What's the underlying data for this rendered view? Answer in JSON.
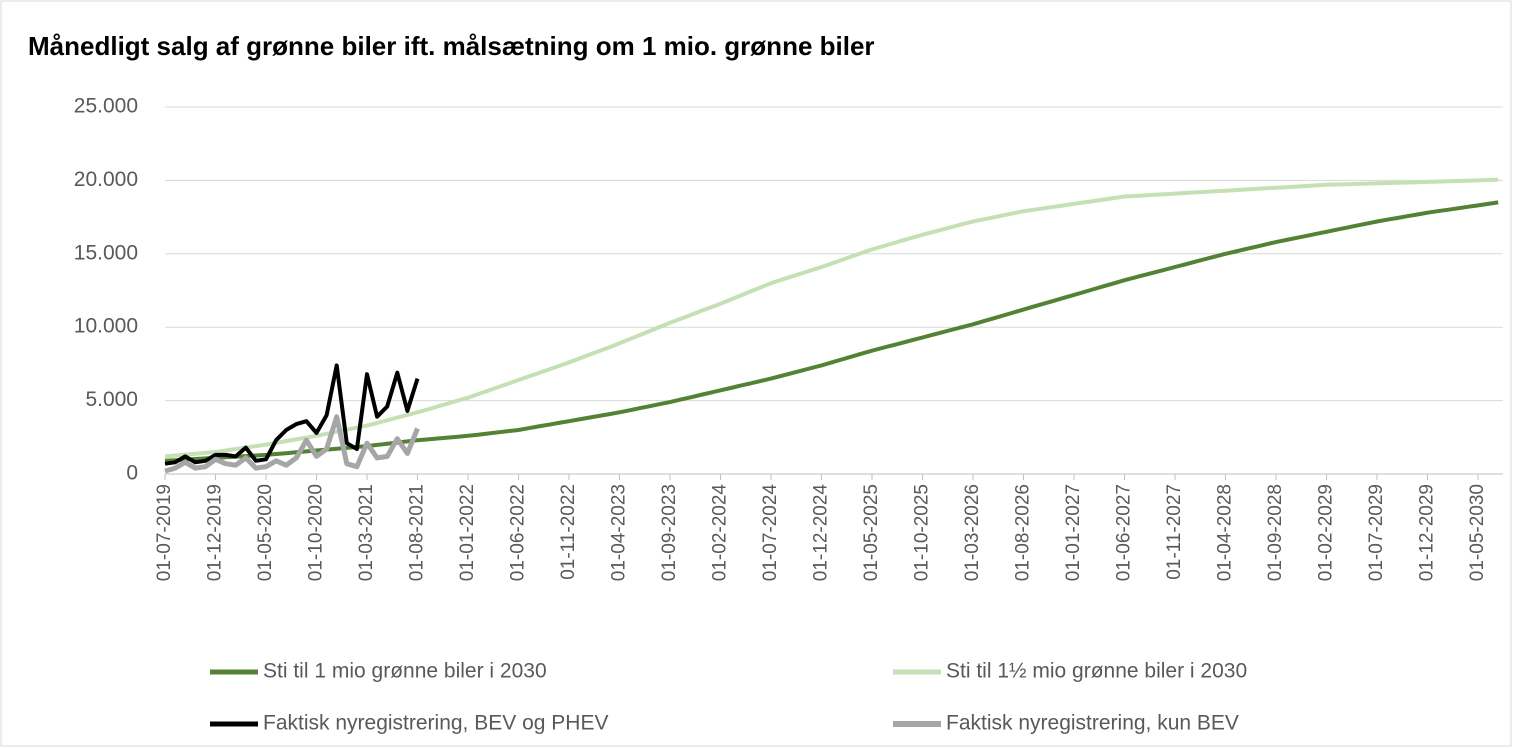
{
  "chart_data": {
    "type": "line",
    "title": "Månedligt salg af grønne biler ift. målsætning om 1 mio. grønne biler",
    "categories": [
      "01-07-2019",
      null,
      null,
      null,
      null,
      "01-12-2019",
      null,
      null,
      null,
      null,
      "01-05-2020",
      null,
      null,
      null,
      null,
      "01-10-2020",
      null,
      null,
      null,
      null,
      "01-03-2021",
      null,
      null,
      null,
      null,
      "01-08-2021",
      null,
      null,
      null,
      null,
      "01-01-2022",
      null,
      null,
      null,
      null,
      "01-06-2022",
      null,
      null,
      null,
      null,
      "01-11-2022",
      null,
      null,
      null,
      null,
      "01-04-2023",
      null,
      null,
      null,
      null,
      "01-09-2023",
      null,
      null,
      null,
      null,
      "01-02-2024",
      null,
      null,
      null,
      null,
      "01-07-2024",
      null,
      null,
      null,
      null,
      "01-12-2024",
      null,
      null,
      null,
      null,
      "01-05-2025",
      null,
      null,
      null,
      null,
      "01-10-2025",
      null,
      null,
      null,
      null,
      "01-03-2026",
      null,
      null,
      null,
      null,
      "01-08-2026",
      null,
      null,
      null,
      null,
      "01-01-2027",
      null,
      null,
      null,
      null,
      "01-06-2027",
      null,
      null,
      null,
      null,
      "01-11-2027",
      null,
      null,
      null,
      null,
      "01-04-2028",
      null,
      null,
      null,
      null,
      "01-09-2028",
      null,
      null,
      null,
      null,
      "01-02-2029",
      null,
      null,
      null,
      null,
      "01-07-2029",
      null,
      null,
      null,
      null,
      "01-12-2029",
      null,
      null,
      null,
      null,
      "01-05-2030",
      null,
      null
    ],
    "series": [
      {
        "name": "Sti til 1 mio grønne biler i 2030",
        "color": "#548235",
        "width": 4,
        "values": [
          900,
          940,
          980,
          1020,
          1060,
          1100,
          1140,
          1180,
          1220,
          1260,
          1300,
          1360,
          1420,
          1480,
          1540,
          1600,
          1660,
          1720,
          1780,
          1840,
          1900,
          1980,
          2060,
          2140,
          2220,
          2300,
          2360,
          2420,
          2480,
          2540,
          2600,
          2680,
          2760,
          2840,
          2920,
          3000,
          3120,
          3240,
          3360,
          3480,
          3600,
          3720,
          3840,
          3960,
          4080,
          4200,
          4340,
          4480,
          4620,
          4760,
          4900,
          5060,
          5220,
          5380,
          5540,
          5700,
          5860,
          6020,
          6180,
          6340,
          6500,
          6680,
          6860,
          7040,
          7220,
          7400,
          7600,
          7800,
          8000,
          8200,
          8400,
          8580,
          8760,
          8940,
          9120,
          9300,
          9480,
          9660,
          9840,
          10020,
          10200,
          10400,
          10600,
          10800,
          11000,
          11200,
          11400,
          11600,
          11800,
          12000,
          12200,
          12400,
          12600,
          12800,
          13000,
          13200,
          13380,
          13560,
          13740,
          13920,
          14100,
          14280,
          14460,
          14640,
          14820,
          15000,
          15160,
          15320,
          15480,
          15640,
          15800,
          15940,
          16080,
          16220,
          16360,
          16500,
          16640,
          16780,
          16920,
          17060,
          17200,
          17320,
          17440,
          17560,
          17680,
          17800,
          17900,
          18000,
          18100,
          18200,
          18300,
          18400,
          18500
        ]
      },
      {
        "name": "Sti til 1½ mio grønne biler i 2030",
        "color": "#c5e0b4",
        "width": 4,
        "values": [
          1200,
          1260,
          1320,
          1380,
          1440,
          1500,
          1600,
          1700,
          1800,
          1900,
          2000,
          2120,
          2240,
          2360,
          2480,
          2600,
          2740,
          2880,
          3020,
          3160,
          3300,
          3480,
          3660,
          3840,
          4020,
          4200,
          4400,
          4600,
          4800,
          5000,
          5200,
          5440,
          5680,
          5920,
          6160,
          6400,
          6640,
          6880,
          7120,
          7360,
          7600,
          7860,
          8120,
          8380,
          8640,
          8900,
          9180,
          9460,
          9740,
          10020,
          10300,
          10560,
          10820,
          11080,
          11340,
          11600,
          11880,
          12160,
          12440,
          12720,
          13000,
          13220,
          13440,
          13660,
          13880,
          14100,
          14340,
          14580,
          14820,
          15060,
          15300,
          15500,
          15700,
          15900,
          16100,
          16300,
          16480,
          16660,
          16840,
          17020,
          17200,
          17340,
          17480,
          17620,
          17760,
          17900,
          18000,
          18100,
          18200,
          18300,
          18400,
          18500,
          18600,
          18700,
          18800,
          18900,
          18940,
          18980,
          19020,
          19060,
          19100,
          19140,
          19180,
          19220,
          19260,
          19300,
          19340,
          19380,
          19420,
          19460,
          19500,
          19540,
          19580,
          19620,
          19660,
          19700,
          19720,
          19740,
          19760,
          19780,
          19800,
          19820,
          19840,
          19860,
          19880,
          19900,
          19920,
          19940,
          19960,
          19980,
          20000,
          20030,
          20050
        ]
      },
      {
        "name": "Faktisk nyregistrering, BEV og PHEV",
        "color": "#000000",
        "width": 4,
        "values": [
          700,
          800,
          1200,
          800,
          900,
          1300,
          1300,
          1200,
          1800,
          900,
          1000,
          2300,
          3000,
          3400,
          3600,
          2800,
          4000,
          7400,
          2100,
          1700,
          6800,
          3900,
          4600,
          6900,
          4300,
          6500,
          null,
          null,
          null,
          null,
          null,
          null,
          null,
          null,
          null,
          null,
          null,
          null,
          null,
          null,
          null,
          null,
          null,
          null,
          null,
          null,
          null,
          null,
          null,
          null,
          null,
          null,
          null,
          null,
          null,
          null,
          null,
          null,
          null,
          null,
          null,
          null,
          null,
          null,
          null,
          null,
          null,
          null,
          null,
          null,
          null,
          null,
          null,
          null,
          null,
          null,
          null,
          null,
          null,
          null,
          null,
          null,
          null,
          null,
          null,
          null,
          null,
          null,
          null,
          null,
          null,
          null,
          null,
          null,
          null,
          null,
          null,
          null,
          null,
          null,
          null,
          null,
          null,
          null,
          null,
          null,
          null,
          null,
          null,
          null,
          null,
          null,
          null,
          null,
          null,
          null,
          null,
          null,
          null,
          null,
          null,
          null,
          null,
          null,
          null,
          null,
          null,
          null,
          null,
          null,
          null,
          null,
          null
        ]
      },
      {
        "name": "Faktisk nyregistrering, kun BEV",
        "color": "#a6a6a6",
        "width": 5,
        "values": [
          200,
          400,
          800,
          400,
          500,
          1000,
          700,
          600,
          1100,
          400,
          500,
          900,
          600,
          1100,
          2300,
          1200,
          1700,
          3900,
          700,
          500,
          2100,
          1100,
          1200,
          2400,
          1400,
          3100,
          null,
          null,
          null,
          null,
          null,
          null,
          null,
          null,
          null,
          null,
          null,
          null,
          null,
          null,
          null,
          null,
          null,
          null,
          null,
          null,
          null,
          null,
          null,
          null,
          null,
          null,
          null,
          null,
          null,
          null,
          null,
          null,
          null,
          null,
          null,
          null,
          null,
          null,
          null,
          null,
          null,
          null,
          null,
          null,
          null,
          null,
          null,
          null,
          null,
          null,
          null,
          null,
          null,
          null,
          null,
          null,
          null,
          null,
          null,
          null,
          null,
          null,
          null,
          null,
          null,
          null,
          null,
          null,
          null,
          null,
          null,
          null,
          null,
          null,
          null,
          null,
          null,
          null,
          null,
          null,
          null,
          null,
          null,
          null,
          null,
          null,
          null,
          null,
          null,
          null,
          null,
          null,
          null,
          null,
          null,
          null,
          null,
          null,
          null,
          null,
          null,
          null,
          null,
          null,
          null,
          null,
          null
        ]
      }
    ],
    "ylim": [
      0,
      25000
    ],
    "yticks": [
      0,
      {
        "value": 5000,
        "label": "5.000"
      },
      {
        "value": 10000,
        "label": "10.000"
      },
      {
        "value": 15000,
        "label": "15.000"
      },
      {
        "value": 20000,
        "label": "20.000"
      },
      {
        "value": 25000,
        "label": "25.000"
      }
    ],
    "grid": true
  }
}
